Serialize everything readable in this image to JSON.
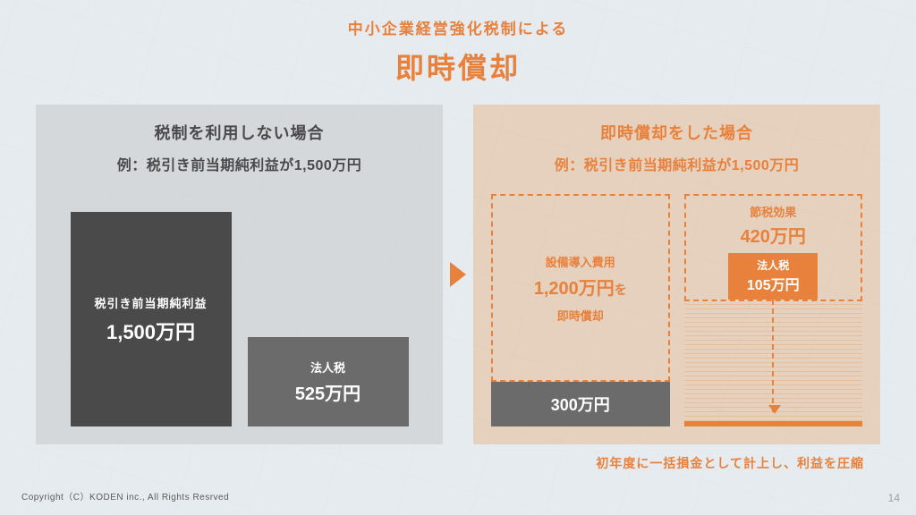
{
  "colors": {
    "orange": "#e8813c",
    "orange_deep": "#e8813c",
    "gray_dark": "#4a4a4a",
    "gray_mid": "#6b6b6b",
    "text_gray": "#5a5a5a",
    "page_num": "#9aa0a5"
  },
  "header": {
    "subtitle": "中小企業経営強化税制による",
    "title": "即時償却"
  },
  "left": {
    "heading": "税制を利用しない場合",
    "sub": "例：税引き前当期純利益が1,500万円",
    "big": {
      "label": "税引き前当期純利益",
      "value": "1,500万円"
    },
    "small": {
      "label": "法人税",
      "value": "525万円"
    }
  },
  "right": {
    "heading": "即時償却をした場合",
    "sub": "例：税引き前当期純利益が1,500万円",
    "equip": {
      "line1": "設備導入費用",
      "value": "1,200万円",
      "wo": "を",
      "line3": "即時償却"
    },
    "profit_remaining": "300万円",
    "savings": {
      "label": "節税効果",
      "value": "420万円"
    },
    "tax": {
      "label": "法人税",
      "value": "105万円"
    },
    "caption": "初年度に一括損金として計上し、利益を圧縮"
  },
  "footer": {
    "copyright": "Copyright（C）KODEN inc., All Rights Resrved",
    "page": "14"
  }
}
